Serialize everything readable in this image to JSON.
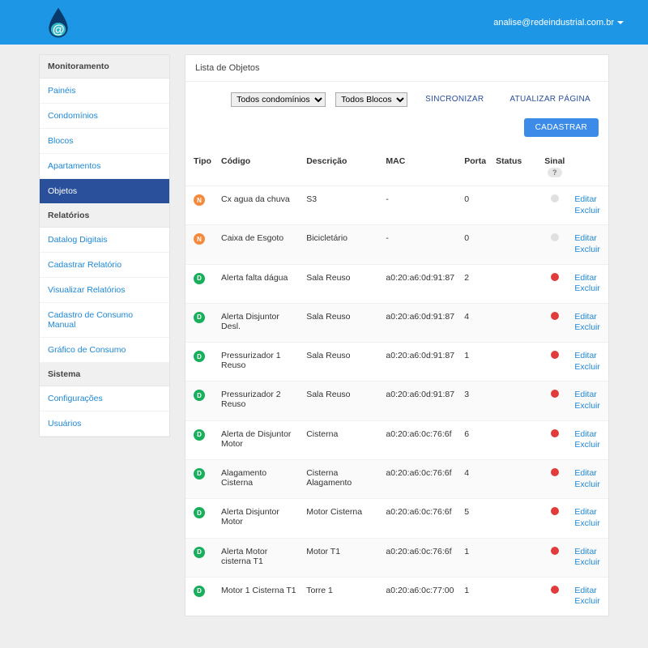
{
  "colors": {
    "topbar": "#1e96e6",
    "sidebarActive": "#2a4f9b",
    "link": "#1e88d6",
    "typeN": "#f58a3c",
    "typeD": "#17ae5c",
    "signalGray": "#e0e0e0",
    "signalRed": "#e23b3b"
  },
  "header": {
    "user_email": "analise@redeindustrial.com.br"
  },
  "sidebar": {
    "groups": [
      {
        "title": "Monitoramento",
        "items": [
          {
            "label": "Painéis",
            "active": false
          },
          {
            "label": "Condomínios",
            "active": false
          },
          {
            "label": "Blocos",
            "active": false
          },
          {
            "label": "Apartamentos",
            "active": false
          },
          {
            "label": "Objetos",
            "active": true
          }
        ]
      },
      {
        "title": "Relatórios",
        "items": [
          {
            "label": "Datalog Digitais",
            "active": false
          },
          {
            "label": "Cadastrar Relatório",
            "active": false
          },
          {
            "label": "Visualizar Relatórios",
            "active": false
          },
          {
            "label": "Cadastro de Consumo Manual",
            "active": false
          },
          {
            "label": "Gráfico de Consumo",
            "active": false
          }
        ]
      },
      {
        "title": "Sistema",
        "items": [
          {
            "label": "Configurações",
            "active": false
          },
          {
            "label": "Usuários",
            "active": false
          }
        ]
      }
    ]
  },
  "main": {
    "title": "Lista de Objetos",
    "filter_condominio": {
      "options": [
        "Todos condomínios"
      ],
      "selected": "Todos condomínios"
    },
    "filter_bloco": {
      "options": [
        "Todos Blocos"
      ],
      "selected": "Todos Blocos"
    },
    "btn_sync": "SINCRONIZAR",
    "btn_refresh": "ATUALIZAR PÁGINA",
    "btn_add": "CADASTRAR",
    "columns": {
      "tipo": "Tipo",
      "codigo": "Código",
      "descricao": "Descrição",
      "mac": "MAC",
      "porta": "Porta",
      "status": "Status",
      "sinal": "Sinal",
      "sinal_help": "?"
    },
    "actions": {
      "edit": "Editar",
      "delete": "Excluir"
    },
    "rows": [
      {
        "type": "N",
        "codigo": "Cx agua da chuva",
        "descricao": "S3",
        "mac": "-",
        "porta": "0",
        "status": "",
        "signal": "gray"
      },
      {
        "type": "N",
        "codigo": "Caixa de Esgoto",
        "descricao": "Bicicletário",
        "mac": "-",
        "porta": "0",
        "status": "",
        "signal": "gray"
      },
      {
        "type": "D",
        "codigo": "Alerta falta dágua",
        "descricao": "Sala Reuso",
        "mac": "a0:20:a6:0d:91:87",
        "porta": "2",
        "status": "",
        "signal": "red"
      },
      {
        "type": "D",
        "codigo": "Alerta Disjuntor Desl.",
        "descricao": "Sala Reuso",
        "mac": "a0:20:a6:0d:91:87",
        "porta": "4",
        "status": "",
        "signal": "red"
      },
      {
        "type": "D",
        "codigo": "Pressurizador 1 Reuso",
        "descricao": "Sala Reuso",
        "mac": "a0:20:a6:0d:91:87",
        "porta": "1",
        "status": "",
        "signal": "red"
      },
      {
        "type": "D",
        "codigo": "Pressurizador 2 Reuso",
        "descricao": "Sala Reuso",
        "mac": "a0:20:a6:0d:91:87",
        "porta": "3",
        "status": "",
        "signal": "red"
      },
      {
        "type": "D",
        "codigo": "Alerta de Disjuntor Motor",
        "descricao": "Cisterna",
        "mac": "a0:20:a6:0c:76:6f",
        "porta": "6",
        "status": "",
        "signal": "red"
      },
      {
        "type": "D",
        "codigo": "Alagamento Cisterna",
        "descricao": "Cisterna Alagamento",
        "mac": "a0:20:a6:0c:76:6f",
        "porta": "4",
        "status": "",
        "signal": "red"
      },
      {
        "type": "D",
        "codigo": "Alerta Disjuntor Motor",
        "descricao": "Motor Cisterna",
        "mac": "a0:20:a6:0c:76:6f",
        "porta": "5",
        "status": "",
        "signal": "red"
      },
      {
        "type": "D",
        "codigo": "Alerta Motor cisterna T1",
        "descricao": "Motor T1",
        "mac": "a0:20:a6:0c:76:6f",
        "porta": "1",
        "status": "",
        "signal": "red"
      },
      {
        "type": "D",
        "codigo": "Motor 1 Cisterna T1",
        "descricao": "Torre 1",
        "mac": "a0:20:a6:0c:77:00",
        "porta": "1",
        "status": "",
        "signal": "red"
      }
    ]
  }
}
